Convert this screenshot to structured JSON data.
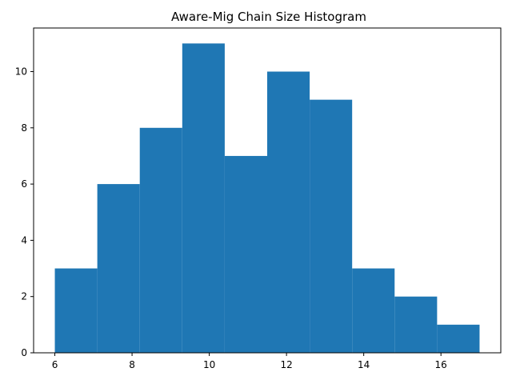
{
  "chart_data": {
    "type": "bar",
    "title": "Aware-Mig Chain Size Histogram",
    "xlabel": "",
    "ylabel": "",
    "bin_edges": [
      6.0,
      7.1,
      8.2,
      9.3,
      10.4,
      11.5,
      12.6,
      13.7,
      14.8,
      15.9,
      17.0
    ],
    "values": [
      3,
      6,
      8,
      11,
      7,
      10,
      9,
      3,
      2,
      1
    ],
    "xlim": [
      5.45,
      17.55
    ],
    "ylim": [
      0,
      11.55
    ],
    "x_ticks": [
      6,
      8,
      10,
      12,
      14,
      16
    ],
    "y_ticks": [
      0,
      2,
      4,
      6,
      8,
      10
    ],
    "bar_color": "#1f77b4",
    "grid": false
  }
}
